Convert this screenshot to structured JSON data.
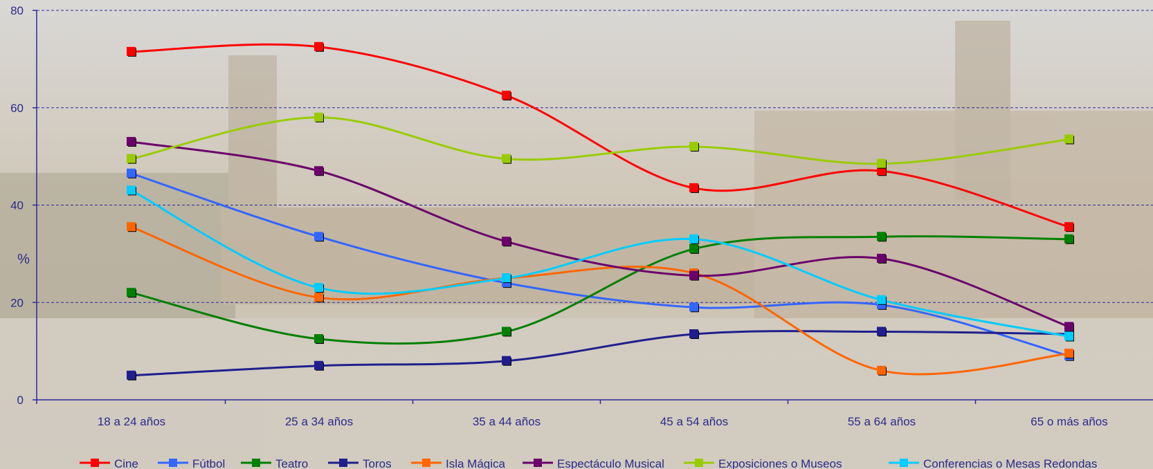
{
  "chart_data": {
    "type": "line",
    "title": "",
    "xlabel": "",
    "ylabel": "%",
    "ylim": [
      0,
      80
    ],
    "yticks": [
      0,
      20,
      40,
      60,
      80
    ],
    "grid": true,
    "legend_position": "bottom",
    "categories": [
      "18 a 24 años",
      "25 a 34 años",
      "35 a 44 años",
      "45 a 54 años",
      "55 a 64 años",
      "65 o más años"
    ],
    "series": [
      {
        "name": "Cine",
        "color": "#ff0000",
        "values": [
          71.5,
          72.5,
          62.5,
          43.5,
          47,
          35.5
        ]
      },
      {
        "name": "Fútbol",
        "color": "#3366ff",
        "values": [
          46.5,
          33.5,
          24,
          19,
          19.5,
          9
        ]
      },
      {
        "name": "Teatro",
        "color": "#008000",
        "values": [
          22,
          12.5,
          14,
          31,
          33.5,
          33
        ]
      },
      {
        "name": "Toros",
        "color": "#1f1f8c",
        "values": [
          5,
          7,
          8,
          13.5,
          14,
          13.5
        ]
      },
      {
        "name": "Isla Mágica",
        "color": "#ff6600",
        "values": [
          35.5,
          21,
          25,
          26,
          6,
          9.5
        ]
      },
      {
        "name": "Espectáculo Musical",
        "color": "#6b006b",
        "values": [
          53,
          47,
          32.5,
          25.5,
          29,
          15
        ]
      },
      {
        "name": "Exposiciones o Museos",
        "color": "#99cc00",
        "values": [
          49.5,
          58,
          49.5,
          52,
          48.5,
          53.5
        ]
      },
      {
        "name": "Conferencias o Mesas Redondas",
        "color": "#00ccff",
        "values": [
          43,
          23,
          25,
          33,
          20.5,
          13
        ]
      }
    ]
  }
}
